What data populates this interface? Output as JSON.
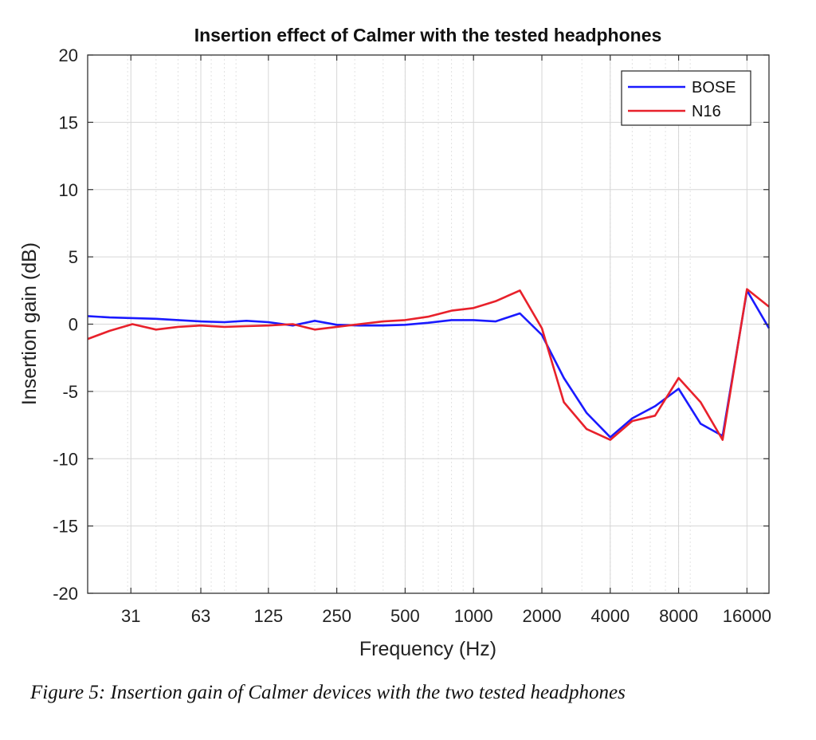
{
  "chart_data": {
    "type": "line",
    "title": "Insertion effect of Calmer with the tested headphones",
    "xlabel": "Frequency (Hz)",
    "ylabel": "Insertion gain (dB)",
    "xscale": "log2",
    "xlim": [
      20,
      20000
    ],
    "ylim": [
      -20,
      20
    ],
    "xticks": [
      31,
      63,
      125,
      250,
      500,
      1000,
      2000,
      4000,
      8000,
      16000
    ],
    "xticklabels": [
      "31",
      "63",
      "125",
      "250",
      "500",
      "1000",
      "2000",
      "4000",
      "8000",
      "16000"
    ],
    "yticks": [
      20,
      15,
      10,
      5,
      0,
      -5,
      -10,
      -15,
      -20
    ],
    "yticklabels": [
      "20",
      "15",
      "10",
      "5",
      "0",
      "-5",
      "-10",
      "-15",
      "-20"
    ],
    "grid": true,
    "legend_position": "top-right",
    "series": [
      {
        "name": "BOSE",
        "color": "#1a1aff",
        "points": [
          [
            20,
            0.6
          ],
          [
            25,
            0.5
          ],
          [
            31.5,
            0.45
          ],
          [
            40,
            0.4
          ],
          [
            50,
            0.3
          ],
          [
            63,
            0.2
          ],
          [
            80,
            0.15
          ],
          [
            100,
            0.25
          ],
          [
            125,
            0.15
          ],
          [
            160,
            -0.1
          ],
          [
            200,
            0.25
          ],
          [
            250,
            -0.05
          ],
          [
            315,
            -0.1
          ],
          [
            400,
            -0.1
          ],
          [
            500,
            -0.05
          ],
          [
            630,
            0.1
          ],
          [
            800,
            0.3
          ],
          [
            1000,
            0.3
          ],
          [
            1250,
            0.2
          ],
          [
            1600,
            0.8
          ],
          [
            2000,
            -0.8
          ],
          [
            2500,
            -4.0
          ],
          [
            3150,
            -6.6
          ],
          [
            4000,
            -8.4
          ],
          [
            5000,
            -7.0
          ],
          [
            6300,
            -6.1
          ],
          [
            8000,
            -4.8
          ],
          [
            10000,
            -7.4
          ],
          [
            12500,
            -8.3
          ],
          [
            16000,
            2.5
          ],
          [
            20000,
            -0.3
          ]
        ]
      },
      {
        "name": "N16",
        "color": "#e8212b",
        "points": [
          [
            20,
            -1.1
          ],
          [
            25,
            -0.5
          ],
          [
            31.5,
            0.0
          ],
          [
            40,
            -0.4
          ],
          [
            50,
            -0.2
          ],
          [
            63,
            -0.1
          ],
          [
            80,
            -0.2
          ],
          [
            100,
            -0.15
          ],
          [
            125,
            -0.1
          ],
          [
            160,
            0.0
          ],
          [
            200,
            -0.4
          ],
          [
            250,
            -0.2
          ],
          [
            315,
            0.0
          ],
          [
            400,
            0.2
          ],
          [
            500,
            0.3
          ],
          [
            630,
            0.55
          ],
          [
            800,
            1.0
          ],
          [
            1000,
            1.2
          ],
          [
            1250,
            1.7
          ],
          [
            1600,
            2.5
          ],
          [
            2000,
            -0.3
          ],
          [
            2500,
            -5.8
          ],
          [
            3150,
            -7.8
          ],
          [
            4000,
            -8.6
          ],
          [
            5000,
            -7.2
          ],
          [
            6300,
            -6.8
          ],
          [
            8000,
            -4.0
          ],
          [
            10000,
            -5.8
          ],
          [
            12500,
            -8.6
          ],
          [
            16000,
            2.6
          ],
          [
            20000,
            1.3
          ]
        ]
      }
    ]
  },
  "caption": "Figure 5: Insertion gain of Calmer devices with the two tested headphones"
}
